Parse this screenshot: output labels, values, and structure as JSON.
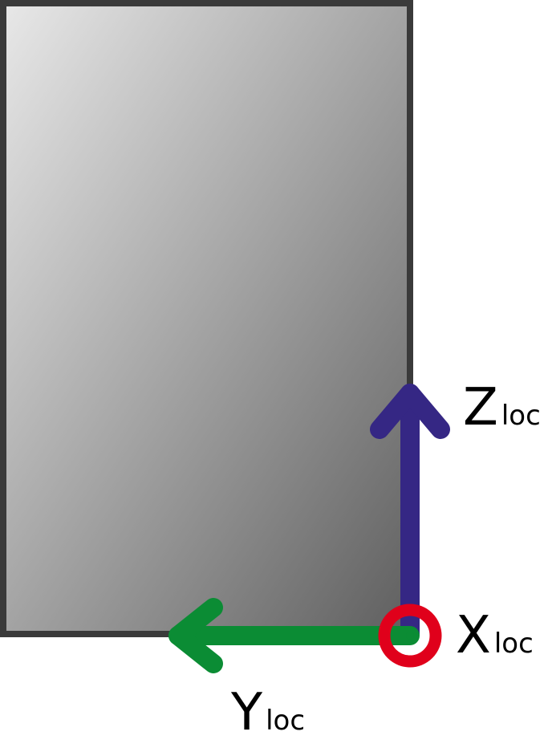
{
  "diagram": {
    "axes": {
      "z": {
        "letter": "Z",
        "subscript": "loc",
        "color": "#352784"
      },
      "y": {
        "letter": "Y",
        "subscript": "loc",
        "color": "#0b8c34"
      },
      "x": {
        "letter": "X",
        "subscript": "loc",
        "color": "#e0001b",
        "symbol": "circle-out-of-plane"
      }
    },
    "body": {
      "shape": "rectangle",
      "gradient_start": "#e8e8e8",
      "gradient_end": "#5f5f5f",
      "border_color": "#3a3a3a"
    }
  }
}
